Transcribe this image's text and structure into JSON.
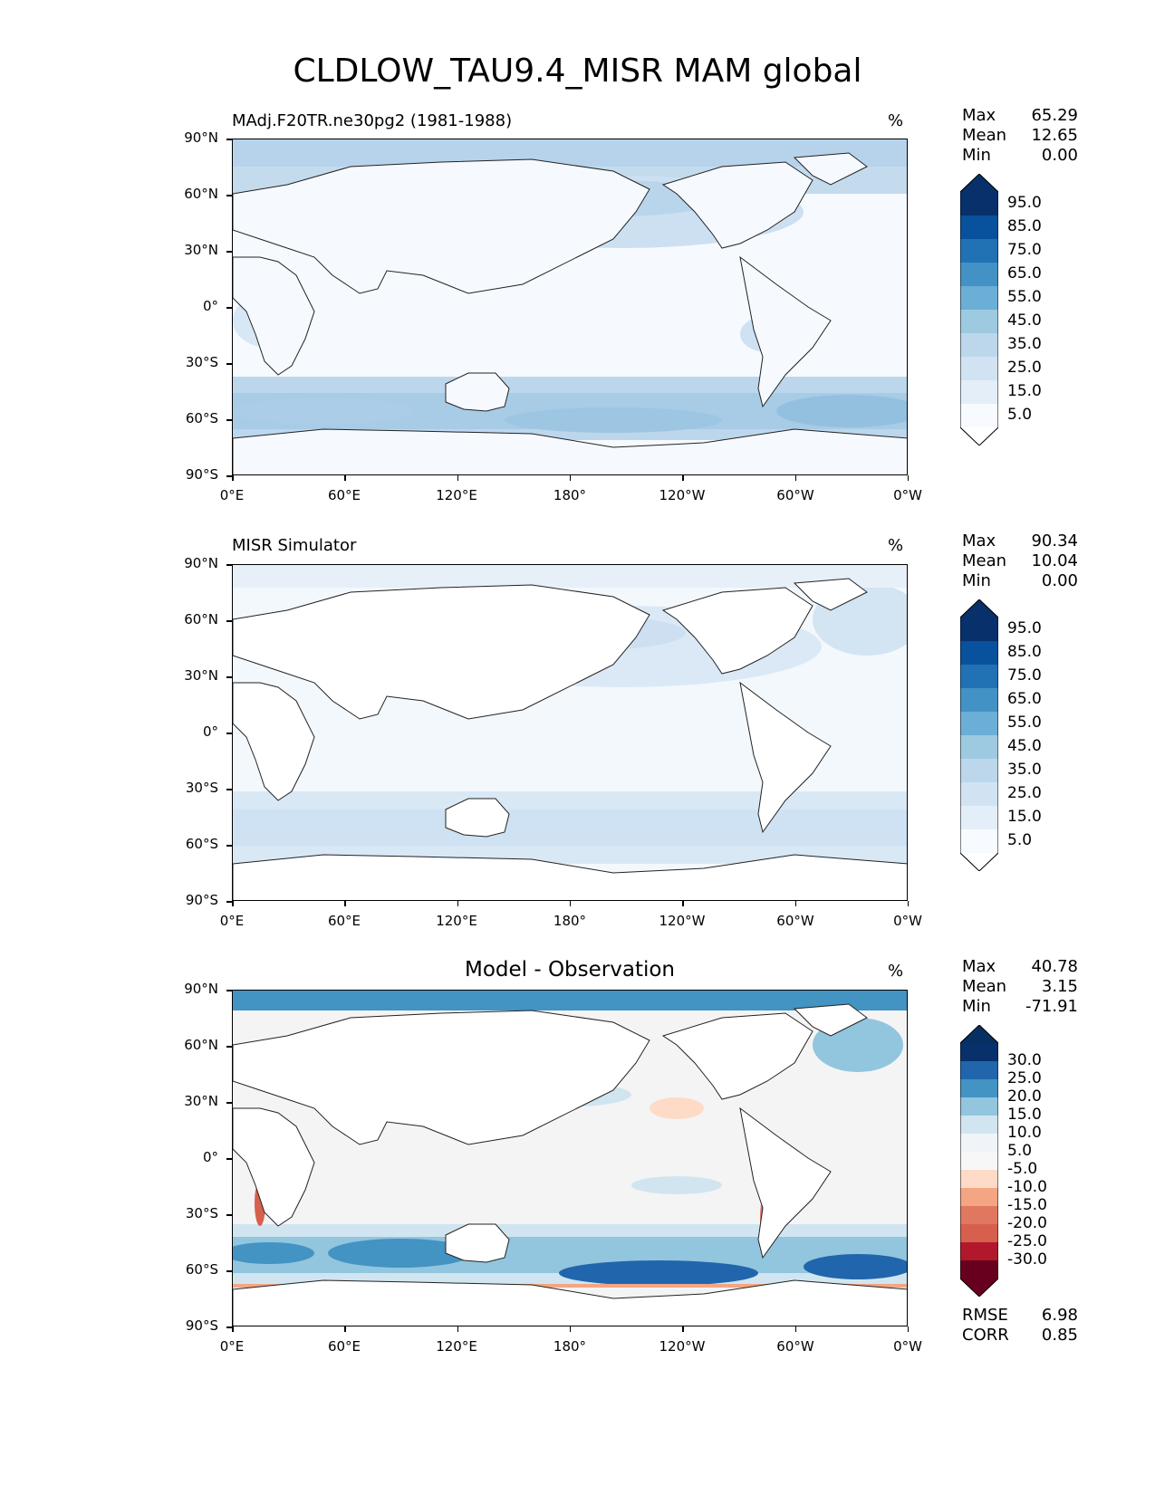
{
  "title": "CLDLOW_TAU9.4_MISR MAM global",
  "y_tick_labels": [
    "90°N",
    "60°N",
    "30°N",
    "0°",
    "30°S",
    "60°S",
    "90°S"
  ],
  "x_tick_labels": [
    "0°E",
    "60°E",
    "120°E",
    "180°",
    "120°W",
    "60°W",
    "0°W"
  ],
  "panels": [
    {
      "title_left": "MAdj.F20TR.ne30pg2 (1981-1988)",
      "title_center": "",
      "unit": "%",
      "stats": {
        "max_label": "Max",
        "max": "65.29",
        "mean_label": "Mean",
        "mean": "12.65",
        "min_label": "Min",
        "min": "0.00"
      },
      "colorbar": {
        "labels": [
          "95.0",
          "85.0",
          "75.0",
          "65.0",
          "55.0",
          "45.0",
          "35.0",
          "25.0",
          "15.0",
          "5.0"
        ],
        "colors": [
          "#08306b",
          "#08519c",
          "#2171b5",
          "#4292c6",
          "#6baed6",
          "#9ecae1",
          "#bcd7ec",
          "#d1e3f3",
          "#e3eef9",
          "#f7fbff"
        ],
        "extend_top": "#08306b",
        "extend_bottom": "#ffffff"
      }
    },
    {
      "title_left": "MISR Simulator",
      "title_center": "",
      "unit": "%",
      "stats": {
        "max_label": "Max",
        "max": "90.34",
        "mean_label": "Mean",
        "mean": "10.04",
        "min_label": "Min",
        "min": "0.00"
      },
      "colorbar": {
        "labels": [
          "95.0",
          "85.0",
          "75.0",
          "65.0",
          "55.0",
          "45.0",
          "35.0",
          "25.0",
          "15.0",
          "5.0"
        ],
        "colors": [
          "#08306b",
          "#08519c",
          "#2171b5",
          "#4292c6",
          "#6baed6",
          "#9ecae1",
          "#bcd7ec",
          "#d1e3f3",
          "#e3eef9",
          "#f7fbff"
        ],
        "extend_top": "#08306b",
        "extend_bottom": "#ffffff"
      }
    },
    {
      "title_left": "",
      "title_center": "Model - Observation",
      "unit": "%",
      "stats": {
        "max_label": "Max",
        "max": "40.78",
        "mean_label": "Mean",
        "mean": "3.15",
        "min_label": "Min",
        "min": "-71.91"
      },
      "colorbar": {
        "labels": [
          "30.0",
          "25.0",
          "20.0",
          "15.0",
          "10.0",
          "5.0",
          "-5.0",
          "-10.0",
          "-15.0",
          "-20.0",
          "-25.0",
          "-30.0"
        ],
        "colors": [
          "#08306b",
          "#2166ac",
          "#4393c3",
          "#92c5de",
          "#d1e5f0",
          "#f0f4f8",
          "#f7f7f7",
          "#fddbc7",
          "#f4a582",
          "#e0785f",
          "#d6604d",
          "#b2182b",
          "#67001f"
        ],
        "extend_top": "#053061",
        "extend_bottom": "#67001f"
      },
      "metrics": {
        "rmse_label": "RMSE",
        "rmse": "6.98",
        "corr_label": "CORR",
        "corr": "0.85"
      }
    }
  ]
}
